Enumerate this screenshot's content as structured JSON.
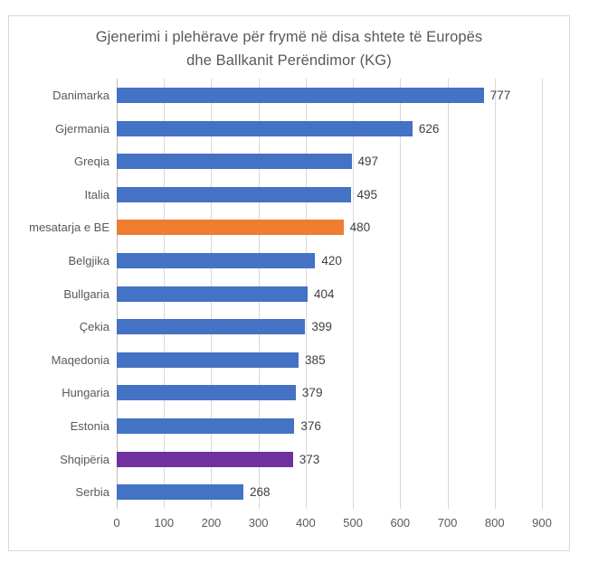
{
  "chart": {
    "title_lines": [
      "Gjenerimi i plehërave për frymë në disa shtete të Europës",
      "dhe Ballkanit Perëndimor (KG)"
    ]
  },
  "chart_data": {
    "type": "bar",
    "orientation": "horizontal",
    "title": "Gjenerimi i plehërave për frymë në disa shtete të Europës dhe Ballkanit Perëndimor (KG)",
    "categories": [
      "Danimarka",
      "Gjermania",
      "Greqia",
      "Italia",
      "mesatarja e BE",
      "Belgjika",
      "Bullgaria",
      "Çekia",
      "Maqedonia",
      "Hungaria",
      "Estonia",
      "Shqipëria",
      "Serbia"
    ],
    "values": [
      777,
      626,
      497,
      495,
      480,
      420,
      404,
      399,
      385,
      379,
      376,
      373,
      268
    ],
    "bar_colors": [
      "#4472C4",
      "#4472C4",
      "#4472C4",
      "#4472C4",
      "#ED7D31",
      "#4472C4",
      "#4472C4",
      "#4472C4",
      "#4472C4",
      "#4472C4",
      "#4472C4",
      "#7030A0",
      "#4472C4"
    ],
    "data_labels": true,
    "xlabel": "",
    "ylabel": "",
    "xlim": [
      0,
      900
    ],
    "xticks": [
      0,
      100,
      200,
      300,
      400,
      500,
      600,
      700,
      800,
      900
    ],
    "grid": "vertical",
    "legend": "none",
    "colors": {
      "default_bar": "#4472C4",
      "eu_average_bar": "#ED7D31",
      "albania_bar": "#7030A0",
      "gridline": "#D9D9D9",
      "axis_line": "#BFBFBF",
      "text": "#595959",
      "value_text": "#404040",
      "frame_border": "#D7D7D7"
    }
  }
}
